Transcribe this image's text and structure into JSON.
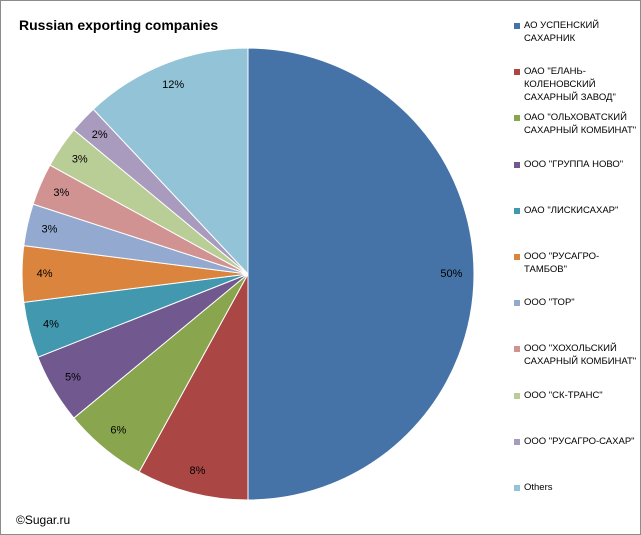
{
  "chart_data": {
    "type": "pie",
    "title": "Russian exporting companies",
    "slices": [
      {
        "label": "АО УСПЕНСКИЙ САХАРНИК",
        "value": 50,
        "display": "50%",
        "color": "#4572a7"
      },
      {
        "label": "ОАО \"ЕЛАНЬ-КОЛЕНОВСКИЙ САХАРНЫЙ ЗАВОД\"",
        "value": 8,
        "display": "8%",
        "color": "#aa4643"
      },
      {
        "label": "ОАО \"ОЛЬХОВАТСКИЙ САХАРНЫЙ КОМБИНАТ\"",
        "value": 6,
        "display": "6%",
        "color": "#89a54e"
      },
      {
        "label": "ООО \"ГРУППА НОВО\"",
        "value": 5,
        "display": "5%",
        "color": "#71588f"
      },
      {
        "label": "ОАО \"ЛИСКИСАХАР\"",
        "value": 4,
        "display": "4%",
        "color": "#4198af"
      },
      {
        "label": "ООО \"РУСАГРО-ТАМБОВ\"",
        "value": 4,
        "display": "4%",
        "color": "#db843d"
      },
      {
        "label": "ООО \"ТОР\"",
        "value": 3,
        "display": "3%",
        "color": "#93a9cf"
      },
      {
        "label": "ООО \"ХОХОЛЬСКИЙ САХАРНЫЙ КОМБИНАТ\"",
        "value": 3,
        "display": "3%",
        "color": "#d19392"
      },
      {
        "label": "ООО \"СК-ТРАНС\"",
        "value": 3,
        "display": "3%",
        "color": "#b9cd96"
      },
      {
        "label": "ООО \"РУСАГРО-САХАР\"",
        "value": 2,
        "display": "2%",
        "color": "#a99bbd"
      },
      {
        "label": "Others",
        "value": 12,
        "display": "12%",
        "color": "#92c3d6"
      }
    ],
    "legend_position": "right"
  },
  "copyright": "©Sugar.ru"
}
